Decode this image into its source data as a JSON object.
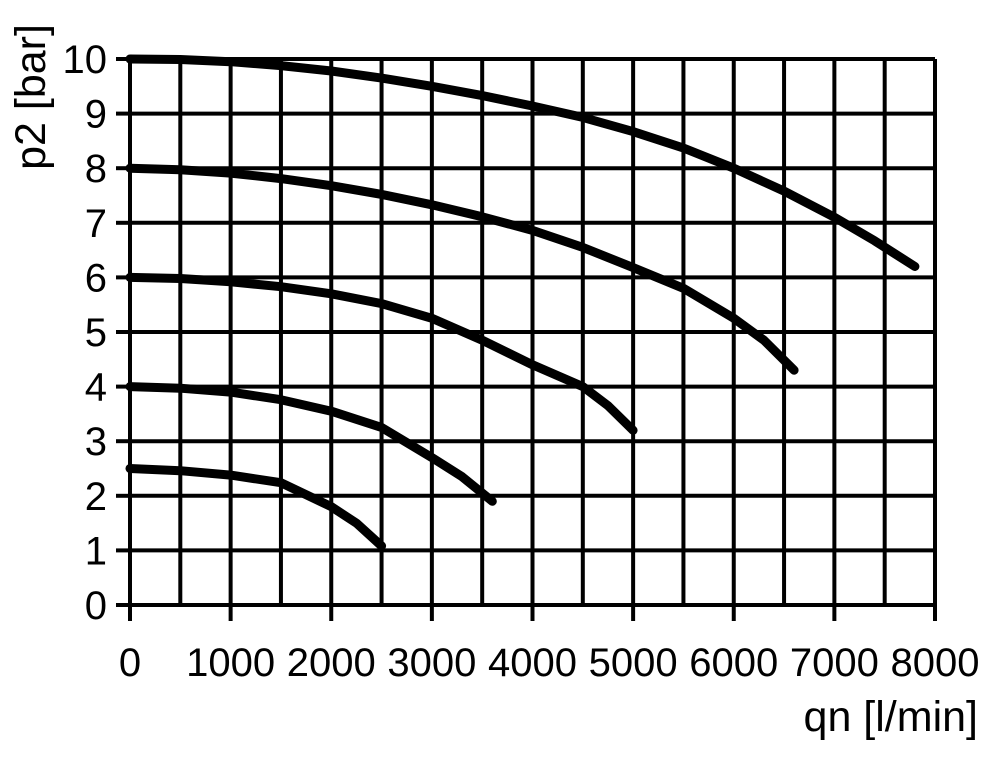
{
  "chart_data": {
    "type": "line",
    "title": "",
    "xlabel": "qn [l/min]",
    "ylabel": "p2 [bar]",
    "xlim": [
      0,
      8000
    ],
    "ylim": [
      0,
      10
    ],
    "x_ticks": [
      0,
      1000,
      2000,
      3000,
      4000,
      5000,
      6000,
      7000,
      8000
    ],
    "y_ticks": [
      0,
      1,
      2,
      3,
      4,
      5,
      6,
      7,
      8,
      9,
      10
    ],
    "x_grid_step": 500,
    "y_grid_step": 1,
    "grid": true,
    "legend_position": "none",
    "line_color": "#000000",
    "grid_color": "#000000",
    "background": "#ffffff",
    "series": [
      {
        "id": "curve-start-10-bar",
        "points": [
          [
            0,
            10
          ],
          [
            500,
            9.99
          ],
          [
            1000,
            9.95
          ],
          [
            1500,
            9.88
          ],
          [
            2000,
            9.78
          ],
          [
            2500,
            9.65
          ],
          [
            3000,
            9.5
          ],
          [
            3500,
            9.33
          ],
          [
            4000,
            9.14
          ],
          [
            4500,
            8.93
          ],
          [
            5000,
            8.67
          ],
          [
            5500,
            8.37
          ],
          [
            6000,
            8.0
          ],
          [
            6500,
            7.58
          ],
          [
            7000,
            7.1
          ],
          [
            7400,
            6.67
          ],
          [
            7800,
            6.2
          ]
        ]
      },
      {
        "id": "curve-start-8-bar",
        "points": [
          [
            0,
            8
          ],
          [
            500,
            7.97
          ],
          [
            1000,
            7.91
          ],
          [
            1500,
            7.81
          ],
          [
            2000,
            7.68
          ],
          [
            2500,
            7.52
          ],
          [
            3000,
            7.33
          ],
          [
            3500,
            7.11
          ],
          [
            4000,
            6.86
          ],
          [
            4500,
            6.55
          ],
          [
            5000,
            6.18
          ],
          [
            5500,
            5.8
          ],
          [
            6000,
            5.25
          ],
          [
            6300,
            4.85
          ],
          [
            6600,
            4.3
          ]
        ]
      },
      {
        "id": "curve-start-6-bar",
        "points": [
          [
            0,
            6
          ],
          [
            500,
            5.98
          ],
          [
            1000,
            5.92
          ],
          [
            1500,
            5.83
          ],
          [
            2000,
            5.7
          ],
          [
            2500,
            5.52
          ],
          [
            3000,
            5.25
          ],
          [
            3500,
            4.85
          ],
          [
            4000,
            4.4
          ],
          [
            4500,
            4.0
          ],
          [
            4750,
            3.65
          ],
          [
            5000,
            3.2
          ]
        ]
      },
      {
        "id": "curve-start-4-bar",
        "points": [
          [
            0,
            4
          ],
          [
            500,
            3.97
          ],
          [
            1000,
            3.9
          ],
          [
            1500,
            3.76
          ],
          [
            2000,
            3.55
          ],
          [
            2500,
            3.25
          ],
          [
            3000,
            2.7
          ],
          [
            3300,
            2.35
          ],
          [
            3600,
            1.9
          ]
        ]
      },
      {
        "id": "curve-start-2.5-bar",
        "points": [
          [
            0,
            2.5
          ],
          [
            500,
            2.46
          ],
          [
            1000,
            2.38
          ],
          [
            1500,
            2.24
          ],
          [
            2000,
            1.8
          ],
          [
            2250,
            1.5
          ],
          [
            2500,
            1.08
          ]
        ]
      }
    ]
  }
}
